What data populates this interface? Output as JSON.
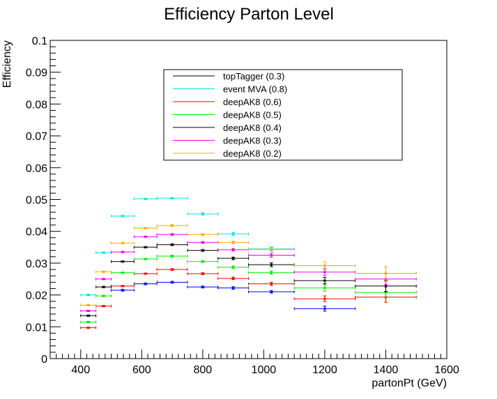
{
  "chart_data": {
    "type": "scatter",
    "title": "Efficiency Parton Level",
    "xlabel": "partonPt (GeV)",
    "ylabel": "Efficiency",
    "xlim": [
      300,
      1600
    ],
    "ylim": [
      0,
      0.1
    ],
    "xticks": [
      400,
      600,
      800,
      1000,
      1200,
      1400,
      1600
    ],
    "yticks": [
      0,
      0.01,
      0.02,
      0.03,
      0.04,
      0.05,
      0.06,
      0.07,
      0.08,
      0.09,
      0.1
    ],
    "ytick_labels": [
      "0",
      "0.01",
      "0.02",
      "0.03",
      "0.04",
      "0.05",
      "0.06",
      "0.07",
      "0.08",
      "0.09",
      "0.1"
    ],
    "grid": false,
    "legend_position": "top-center",
    "series": [
      {
        "name": "topTagger (0.3)",
        "color": "#0000ff",
        "legend_color": "#000000",
        "points": [
          {
            "x0": 500,
            "x1": 575,
            "y": 0.0215,
            "err": 0.0003
          },
          {
            "x0": 575,
            "x1": 650,
            "y": 0.0235,
            "err": 0.0003
          },
          {
            "x0": 650,
            "x1": 750,
            "y": 0.024,
            "err": 0.0003
          },
          {
            "x0": 750,
            "x1": 850,
            "y": 0.0225,
            "err": 0.0003
          },
          {
            "x0": 850,
            "x1": 950,
            "y": 0.0222,
            "err": 0.0004
          },
          {
            "x0": 950,
            "x1": 1100,
            "y": 0.021,
            "err": 0.0004
          },
          {
            "x0": 1100,
            "x1": 1300,
            "y": 0.0157,
            "err": 0.0008
          }
        ]
      },
      {
        "name": "event MVA (0.8)",
        "color": "#00e5e5",
        "points": [
          {
            "x0": 400,
            "x1": 450,
            "y": 0.02,
            "err": 0.0002
          },
          {
            "x0": 450,
            "x1": 500,
            "y": 0.0333,
            "err": 0.0002
          },
          {
            "x0": 500,
            "x1": 575,
            "y": 0.0448,
            "err": 0.0002
          },
          {
            "x0": 575,
            "x1": 650,
            "y": 0.0502,
            "err": 0.0002
          },
          {
            "x0": 650,
            "x1": 750,
            "y": 0.0504,
            "err": 0.0002
          },
          {
            "x0": 750,
            "x1": 850,
            "y": 0.0455,
            "err": 0.0004
          },
          {
            "x0": 850,
            "x1": 950,
            "y": 0.0392,
            "err": 0.0005
          },
          {
            "x0": 950,
            "x1": 1100,
            "y": 0.0345,
            "err": 0.0006
          }
        ]
      },
      {
        "name": "deepAK8 (0.6)",
        "color": "#ff0000",
        "points": [
          {
            "x0": 400,
            "x1": 450,
            "y": 0.0097,
            "err": 0.0002
          },
          {
            "x0": 450,
            "x1": 500,
            "y": 0.0165,
            "err": 0.0002
          },
          {
            "x0": 500,
            "x1": 575,
            "y": 0.0228,
            "err": 0.0002
          },
          {
            "x0": 575,
            "x1": 650,
            "y": 0.0267,
            "err": 0.0002
          },
          {
            "x0": 650,
            "x1": 750,
            "y": 0.028,
            "err": 0.0003
          },
          {
            "x0": 750,
            "x1": 850,
            "y": 0.0267,
            "err": 0.0003
          },
          {
            "x0": 850,
            "x1": 950,
            "y": 0.0252,
            "err": 0.0004
          },
          {
            "x0": 950,
            "x1": 1100,
            "y": 0.0235,
            "err": 0.0005
          },
          {
            "x0": 1100,
            "x1": 1300,
            "y": 0.0188,
            "err": 0.0009
          },
          {
            "x0": 1300,
            "x1": 1500,
            "y": 0.0193,
            "err": 0.0016
          }
        ]
      },
      {
        "name": "deepAK8 (0.5)",
        "color": "#00ee00",
        "points": [
          {
            "x0": 400,
            "x1": 450,
            "y": 0.0115,
            "err": 0.0002
          },
          {
            "x0": 450,
            "x1": 500,
            "y": 0.0197,
            "err": 0.0002
          },
          {
            "x0": 500,
            "x1": 575,
            "y": 0.027,
            "err": 0.0002
          },
          {
            "x0": 575,
            "x1": 650,
            "y": 0.0313,
            "err": 0.0002
          },
          {
            "x0": 650,
            "x1": 750,
            "y": 0.0322,
            "err": 0.0003
          },
          {
            "x0": 750,
            "x1": 850,
            "y": 0.0305,
            "err": 0.0003
          },
          {
            "x0": 850,
            "x1": 950,
            "y": 0.0287,
            "err": 0.0004
          },
          {
            "x0": 950,
            "x1": 1100,
            "y": 0.027,
            "err": 0.0005
          },
          {
            "x0": 1100,
            "x1": 1300,
            "y": 0.0222,
            "err": 0.001
          },
          {
            "x0": 1300,
            "x1": 1500,
            "y": 0.0208,
            "err": 0.0016
          }
        ]
      },
      {
        "name": "deepAK8 (0.4)",
        "color": "#000000",
        "points": [
          {
            "x0": 400,
            "x1": 450,
            "y": 0.0135,
            "err": 0.0002
          },
          {
            "x0": 450,
            "x1": 500,
            "y": 0.0225,
            "err": 0.0002
          },
          {
            "x0": 500,
            "x1": 575,
            "y": 0.0305,
            "err": 0.0002
          },
          {
            "x0": 575,
            "x1": 650,
            "y": 0.035,
            "err": 0.0002
          },
          {
            "x0": 650,
            "x1": 750,
            "y": 0.0358,
            "err": 0.0003
          },
          {
            "x0": 750,
            "x1": 850,
            "y": 0.034,
            "err": 0.0003
          },
          {
            "x0": 850,
            "x1": 950,
            "y": 0.0315,
            "err": 0.0004
          },
          {
            "x0": 950,
            "x1": 1100,
            "y": 0.0295,
            "err": 0.0006
          },
          {
            "x0": 1100,
            "x1": 1300,
            "y": 0.0245,
            "err": 0.001
          },
          {
            "x0": 1300,
            "x1": 1500,
            "y": 0.0228,
            "err": 0.0017
          }
        ]
      },
      {
        "name": "deepAK8 (0.3)",
        "color": "#ee00ee",
        "points": [
          {
            "x0": 400,
            "x1": 450,
            "y": 0.015,
            "err": 0.0002
          },
          {
            "x0": 450,
            "x1": 500,
            "y": 0.025,
            "err": 0.0002
          },
          {
            "x0": 500,
            "x1": 575,
            "y": 0.0335,
            "err": 0.0002
          },
          {
            "x0": 575,
            "x1": 650,
            "y": 0.0383,
            "err": 0.0002
          },
          {
            "x0": 650,
            "x1": 750,
            "y": 0.039,
            "err": 0.0003
          },
          {
            "x0": 750,
            "x1": 850,
            "y": 0.0365,
            "err": 0.0003
          },
          {
            "x0": 850,
            "x1": 950,
            "y": 0.0342,
            "err": 0.0004
          },
          {
            "x0": 950,
            "x1": 1100,
            "y": 0.0325,
            "err": 0.0006
          },
          {
            "x0": 1100,
            "x1": 1300,
            "y": 0.0272,
            "err": 0.0011
          },
          {
            "x0": 1300,
            "x1": 1500,
            "y": 0.025,
            "err": 0.0017
          }
        ]
      },
      {
        "name": "deepAK8 (0.2)",
        "color": "#ffaa00",
        "points": [
          {
            "x0": 400,
            "x1": 450,
            "y": 0.0168,
            "err": 0.0002
          },
          {
            "x0": 450,
            "x1": 500,
            "y": 0.0273,
            "err": 0.0002
          },
          {
            "x0": 500,
            "x1": 575,
            "y": 0.0363,
            "err": 0.0002
          },
          {
            "x0": 575,
            "x1": 650,
            "y": 0.041,
            "err": 0.0002
          },
          {
            "x0": 650,
            "x1": 750,
            "y": 0.0418,
            "err": 0.0003
          },
          {
            "x0": 750,
            "x1": 850,
            "y": 0.039,
            "err": 0.0003
          },
          {
            "x0": 850,
            "x1": 950,
            "y": 0.0365,
            "err": 0.0004
          },
          {
            "x0": 950,
            "x1": 1100,
            "y": 0.0343,
            "err": 0.0006
          },
          {
            "x0": 1100,
            "x1": 1300,
            "y": 0.0292,
            "err": 0.0012
          },
          {
            "x0": 1300,
            "x1": 1500,
            "y": 0.0268,
            "err": 0.0021
          }
        ]
      }
    ]
  }
}
